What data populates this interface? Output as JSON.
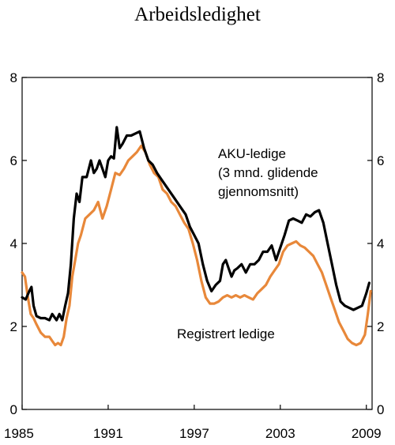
{
  "chart_data": {
    "type": "line",
    "title": "Arbeidsledighet",
    "xlabel": "",
    "ylabel": "",
    "xlim": [
      1985,
      2009.4
    ],
    "ylim": [
      0,
      8
    ],
    "x_ticks": [
      "1985",
      "1991",
      "1997",
      "2003",
      "2009"
    ],
    "y_ticks": [
      "0",
      "2",
      "4",
      "6",
      "8"
    ],
    "y_ticks_right": [
      "0",
      "2",
      "4",
      "6",
      "8"
    ],
    "grid": false,
    "legend": "none",
    "annotations": [
      {
        "lines": [
          "AKU-ledige",
          "(3 mnd. glidende",
          "gjennomsnitt)"
        ]
      },
      {
        "lines": [
          "Registrert ledige"
        ]
      }
    ],
    "series": [
      {
        "color": "#000000",
        "points": [
          [
            1985.0,
            2.7
          ],
          [
            1985.25,
            2.65
          ],
          [
            1985.5,
            2.85
          ],
          [
            1985.65,
            2.95
          ],
          [
            1985.8,
            2.5
          ],
          [
            1986.0,
            2.25
          ],
          [
            1986.3,
            2.2
          ],
          [
            1986.6,
            2.2
          ],
          [
            1986.9,
            2.15
          ],
          [
            1987.1,
            2.3
          ],
          [
            1987.4,
            2.15
          ],
          [
            1987.6,
            2.3
          ],
          [
            1987.8,
            2.15
          ],
          [
            1988.0,
            2.5
          ],
          [
            1988.2,
            2.8
          ],
          [
            1988.4,
            3.5
          ],
          [
            1988.6,
            4.6
          ],
          [
            1988.8,
            5.2
          ],
          [
            1989.0,
            5.0
          ],
          [
            1989.2,
            5.6
          ],
          [
            1989.5,
            5.6
          ],
          [
            1989.8,
            6.0
          ],
          [
            1990.0,
            5.7
          ],
          [
            1990.2,
            5.8
          ],
          [
            1990.4,
            6.0
          ],
          [
            1990.6,
            5.8
          ],
          [
            1990.8,
            5.6
          ],
          [
            1991.0,
            6.0
          ],
          [
            1991.2,
            6.1
          ],
          [
            1991.4,
            6.05
          ],
          [
            1991.6,
            6.8
          ],
          [
            1991.8,
            6.3
          ],
          [
            1992.0,
            6.4
          ],
          [
            1992.3,
            6.6
          ],
          [
            1992.6,
            6.6
          ],
          [
            1992.9,
            6.65
          ],
          [
            1993.2,
            6.7
          ],
          [
            1993.5,
            6.3
          ],
          [
            1993.8,
            6.0
          ],
          [
            1994.1,
            5.9
          ],
          [
            1994.4,
            5.7
          ],
          [
            1994.8,
            5.5
          ],
          [
            1995.2,
            5.3
          ],
          [
            1995.6,
            5.1
          ],
          [
            1996.0,
            4.9
          ],
          [
            1996.4,
            4.7
          ],
          [
            1996.7,
            4.4
          ],
          [
            1997.0,
            4.2
          ],
          [
            1997.3,
            4.0
          ],
          [
            1997.6,
            3.5
          ],
          [
            1997.9,
            3.1
          ],
          [
            1998.2,
            2.85
          ],
          [
            1998.5,
            3.0
          ],
          [
            1998.8,
            3.1
          ],
          [
            1999.0,
            3.5
          ],
          [
            1999.2,
            3.6
          ],
          [
            1999.4,
            3.4
          ],
          [
            1999.6,
            3.2
          ],
          [
            1999.8,
            3.35
          ],
          [
            2000.0,
            3.4
          ],
          [
            2000.3,
            3.5
          ],
          [
            2000.6,
            3.3
          ],
          [
            2000.9,
            3.5
          ],
          [
            2001.2,
            3.5
          ],
          [
            2001.5,
            3.6
          ],
          [
            2001.8,
            3.8
          ],
          [
            2002.1,
            3.8
          ],
          [
            2002.4,
            3.95
          ],
          [
            2002.7,
            3.6
          ],
          [
            2003.0,
            3.9
          ],
          [
            2003.3,
            4.2
          ],
          [
            2003.6,
            4.55
          ],
          [
            2003.9,
            4.6
          ],
          [
            2004.2,
            4.55
          ],
          [
            2004.5,
            4.5
          ],
          [
            2004.8,
            4.7
          ],
          [
            2005.1,
            4.65
          ],
          [
            2005.4,
            4.75
          ],
          [
            2005.7,
            4.8
          ],
          [
            2006.0,
            4.5
          ],
          [
            2006.3,
            4.0
          ],
          [
            2006.6,
            3.5
          ],
          [
            2006.9,
            3.0
          ],
          [
            2007.2,
            2.6
          ],
          [
            2007.5,
            2.5
          ],
          [
            2007.8,
            2.45
          ],
          [
            2008.1,
            2.4
          ],
          [
            2008.4,
            2.45
          ],
          [
            2008.7,
            2.5
          ],
          [
            2009.0,
            2.8
          ],
          [
            2009.2,
            3.05
          ]
        ]
      },
      {
        "color": "#e8883a",
        "points": [
          [
            1985.0,
            3.3
          ],
          [
            1985.2,
            3.2
          ],
          [
            1985.4,
            2.7
          ],
          [
            1985.6,
            2.3
          ],
          [
            1985.8,
            2.2
          ],
          [
            1986.0,
            2.05
          ],
          [
            1986.3,
            1.85
          ],
          [
            1986.6,
            1.75
          ],
          [
            1986.9,
            1.75
          ],
          [
            1987.1,
            1.65
          ],
          [
            1987.3,
            1.55
          ],
          [
            1987.5,
            1.6
          ],
          [
            1987.7,
            1.55
          ],
          [
            1987.9,
            1.75
          ],
          [
            1988.1,
            2.2
          ],
          [
            1988.3,
            2.5
          ],
          [
            1988.5,
            3.2
          ],
          [
            1988.7,
            3.6
          ],
          [
            1988.9,
            4.0
          ],
          [
            1989.1,
            4.2
          ],
          [
            1989.4,
            4.6
          ],
          [
            1989.7,
            4.7
          ],
          [
            1990.0,
            4.8
          ],
          [
            1990.3,
            5.0
          ],
          [
            1990.6,
            4.6
          ],
          [
            1990.9,
            4.9
          ],
          [
            1991.2,
            5.3
          ],
          [
            1991.5,
            5.7
          ],
          [
            1991.8,
            5.65
          ],
          [
            1992.1,
            5.8
          ],
          [
            1992.4,
            6.0
          ],
          [
            1992.7,
            6.1
          ],
          [
            1993.0,
            6.2
          ],
          [
            1993.3,
            6.35
          ],
          [
            1993.6,
            6.2
          ],
          [
            1993.9,
            5.9
          ],
          [
            1994.2,
            5.7
          ],
          [
            1994.5,
            5.6
          ],
          [
            1994.8,
            5.3
          ],
          [
            1995.1,
            5.2
          ],
          [
            1995.4,
            5.0
          ],
          [
            1995.7,
            4.9
          ],
          [
            1996.0,
            4.7
          ],
          [
            1996.3,
            4.5
          ],
          [
            1996.6,
            4.35
          ],
          [
            1996.9,
            4.0
          ],
          [
            1997.2,
            3.6
          ],
          [
            1997.5,
            3.1
          ],
          [
            1997.8,
            2.7
          ],
          [
            1998.1,
            2.55
          ],
          [
            1998.4,
            2.55
          ],
          [
            1998.7,
            2.6
          ],
          [
            1999.0,
            2.7
          ],
          [
            1999.3,
            2.75
          ],
          [
            1999.6,
            2.7
          ],
          [
            1999.9,
            2.75
          ],
          [
            2000.2,
            2.7
          ],
          [
            2000.5,
            2.75
          ],
          [
            2000.8,
            2.7
          ],
          [
            2001.1,
            2.65
          ],
          [
            2001.4,
            2.8
          ],
          [
            2001.7,
            2.9
          ],
          [
            2002.0,
            3.0
          ],
          [
            2002.3,
            3.2
          ],
          [
            2002.6,
            3.35
          ],
          [
            2002.9,
            3.5
          ],
          [
            2003.2,
            3.8
          ],
          [
            2003.5,
            3.95
          ],
          [
            2003.8,
            4.0
          ],
          [
            2004.1,
            4.05
          ],
          [
            2004.4,
            3.95
          ],
          [
            2004.7,
            3.9
          ],
          [
            2005.0,
            3.8
          ],
          [
            2005.3,
            3.7
          ],
          [
            2005.6,
            3.5
          ],
          [
            2005.9,
            3.3
          ],
          [
            2006.2,
            3.0
          ],
          [
            2006.5,
            2.7
          ],
          [
            2006.8,
            2.4
          ],
          [
            2007.1,
            2.1
          ],
          [
            2007.4,
            1.9
          ],
          [
            2007.7,
            1.7
          ],
          [
            2008.0,
            1.6
          ],
          [
            2008.3,
            1.55
          ],
          [
            2008.6,
            1.6
          ],
          [
            2008.9,
            1.8
          ],
          [
            2009.1,
            2.3
          ],
          [
            2009.3,
            2.85
          ]
        ]
      }
    ]
  }
}
